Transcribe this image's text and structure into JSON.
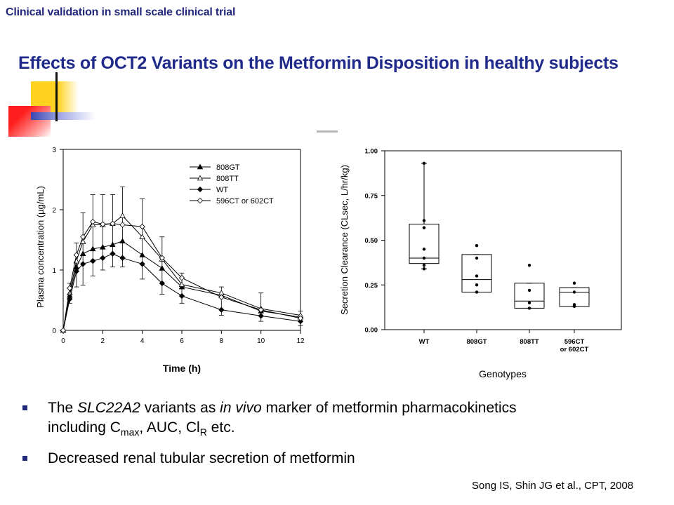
{
  "header": {
    "section_title": "Clinical validation in small scale clinical trial",
    "main_title": "Effects of OCT2 Variants on the Metformin Disposition in healthy subjects"
  },
  "colors": {
    "title": "#1f2a8a",
    "deco_yellow": "#ffd21f",
    "deco_red": "#ff2020",
    "deco_blue": "#3a46b0"
  },
  "chart_data": [
    {
      "type": "line",
      "ylabel": "Plasma concentration (µg/mL)",
      "xlabel": "Time (h)",
      "xlim": [
        0,
        12
      ],
      "ylim": [
        0,
        3
      ],
      "xticks": [
        "0",
        "2",
        "4",
        "6",
        "8",
        "10",
        "12"
      ],
      "yticks": [
        "0",
        "1",
        "2",
        "3"
      ],
      "legend_position": "top-right",
      "x": [
        0,
        0.33,
        0.67,
        1,
        1.5,
        2,
        2.5,
        3,
        4,
        5,
        6,
        8,
        10,
        12
      ],
      "series": [
        {
          "name": "808GT",
          "marker": "filled-triangle",
          "values": [
            0,
            0.58,
            1.05,
            1.27,
            1.35,
            1.38,
            1.42,
            1.48,
            1.25,
            1.03,
            0.72,
            0.58,
            0.32,
            0.22
          ]
        },
        {
          "name": "808TT",
          "marker": "open-triangle",
          "values": [
            0,
            0.62,
            1.15,
            1.47,
            1.75,
            1.75,
            1.77,
            1.9,
            1.55,
            1.18,
            0.76,
            0.62,
            0.36,
            0.25
          ]
        },
        {
          "name": "WT",
          "marker": "filled-diamond",
          "values": [
            0,
            0.52,
            0.98,
            1.1,
            1.15,
            1.2,
            1.27,
            1.2,
            1.1,
            0.78,
            0.57,
            0.34,
            0.24,
            0.15
          ]
        },
        {
          "name": "596CT or 602CT",
          "marker": "open-diamond",
          "values": [
            0,
            0.7,
            1.25,
            1.55,
            1.8,
            1.76,
            1.77,
            1.75,
            1.72,
            1.2,
            0.87,
            0.55,
            0.34,
            0.2
          ]
        }
      ],
      "error_bars": {
        "x": [
          0.33,
          0.67,
          1,
          1.5,
          2,
          2.5,
          3,
          4,
          5,
          6,
          8,
          10,
          12
        ],
        "lower": [
          0.45,
          0.72,
          0.75,
          0.9,
          1.0,
          1.05,
          1.05,
          0.85,
          0.6,
          0.45,
          0.25,
          0.15,
          0.08
        ],
        "upper": [
          0.78,
          1.45,
          1.95,
          2.25,
          2.25,
          2.25,
          2.38,
          2.18,
          1.55,
          0.95,
          0.72,
          0.62,
          0.32
        ]
      }
    },
    {
      "type": "box",
      "ylabel": "Secretion Clearance (CLsec, L/hr/kg)",
      "xlabel": "Genotypes",
      "ylim": [
        0,
        1.0
      ],
      "yticks": [
        "0.00",
        "0.25",
        "0.50",
        "0.75",
        "1.00"
      ],
      "categories": [
        "WT",
        "808GT",
        "808TT",
        "596CT or 602CT"
      ],
      "category_labels": [
        [
          "WT"
        ],
        [
          "808GT"
        ],
        [
          "808TT"
        ],
        [
          "596CT",
          "or 602CT"
        ]
      ],
      "boxes": [
        {
          "q1": 0.37,
          "median": 0.4,
          "q3": 0.59,
          "whisker_low": 0.34,
          "whisker_high": 0.93,
          "points": [
            0.93,
            0.61,
            0.57,
            0.45,
            0.4,
            0.36,
            0.34
          ]
        },
        {
          "q1": 0.21,
          "median": 0.28,
          "q3": 0.42,
          "whisker_low": 0.21,
          "whisker_high": 0.42,
          "points": [
            0.47,
            0.4,
            0.3,
            0.25,
            0.21
          ]
        },
        {
          "q1": 0.12,
          "median": 0.16,
          "q3": 0.26,
          "whisker_low": 0.12,
          "whisker_high": 0.26,
          "points": [
            0.36,
            0.22,
            0.15,
            0.12
          ]
        },
        {
          "q1": 0.13,
          "median": 0.21,
          "q3": 0.235,
          "whisker_low": 0.13,
          "whisker_high": 0.235,
          "points": [
            0.26,
            0.21,
            0.14,
            0.13
          ]
        }
      ]
    }
  ],
  "bullets": {
    "b1_pre": "The ",
    "b1_gene": "SLC22A2",
    "b1_mid": " variants as ",
    "b1_invivo": "in vivo",
    "b1_post": " marker of metformin pharmacokinetics",
    "b1_line2_pre": "including C",
    "b1_line2_sub": "max",
    "b1_line2_mid": ", AUC, Cl",
    "b1_line2_sub2": "R",
    "b1_line2_post": " etc.",
    "b2": "Decreased renal tubular secretion of metformin"
  },
  "citation": "Song IS, Shin JG et al., CPT, 2008"
}
